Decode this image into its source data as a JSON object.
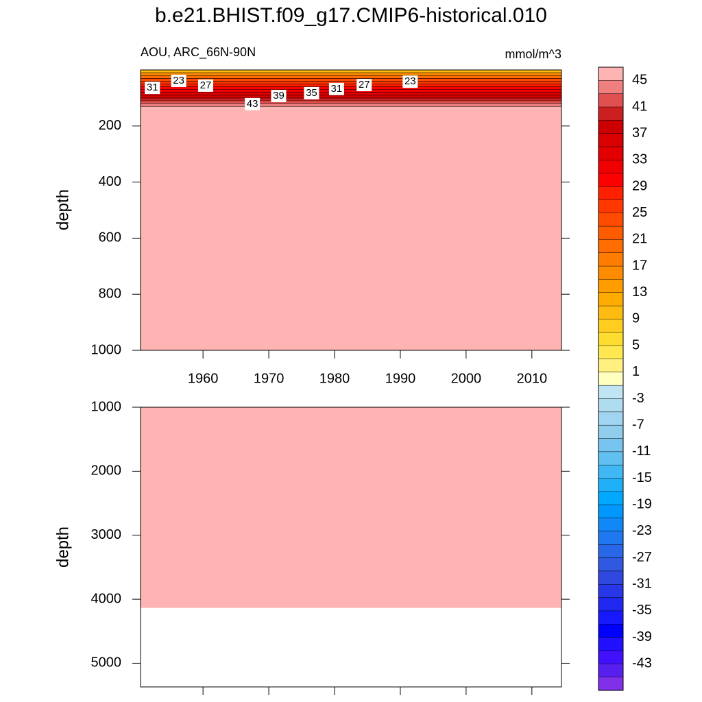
{
  "chart_data": {
    "type": "contour",
    "title": "b.e21.BHIST.f09_g17.CMIP6-historical.010",
    "subtitle_left": "AOU, ARC_66N-90N",
    "subtitle_right": "mmol/m^3",
    "panels": [
      {
        "ylabel": "depth",
        "xlim": [
          1950.5,
          2014.5
        ],
        "ylim": [
          1000,
          0
        ],
        "xticks": [
          1960,
          1970,
          1980,
          1990,
          2000,
          2010
        ],
        "yticks": [
          200,
          400,
          600,
          800,
          1000
        ],
        "show_xtick_labels": true,
        "profile": {
          "depths": [
            0,
            10,
            20,
            30,
            40,
            50,
            60,
            70,
            80,
            90,
            100,
            110,
            120,
            130
          ],
          "values": [
            11,
            17,
            21,
            25,
            27,
            29,
            31,
            33,
            35,
            37,
            41,
            43,
            45,
            47
          ]
        },
        "contour_labels": [
          {
            "text": "31",
            "x": 1952.3,
            "y": 64
          },
          {
            "text": "23",
            "x": 1956.3,
            "y": 39
          },
          {
            "text": "27",
            "x": 1960.4,
            "y": 56
          },
          {
            "text": "43",
            "x": 1967.5,
            "y": 122
          },
          {
            "text": "39",
            "x": 1971.5,
            "y": 93
          },
          {
            "text": "35",
            "x": 1976.5,
            "y": 83
          },
          {
            "text": "31",
            "x": 1980.3,
            "y": 68
          },
          {
            "text": "27",
            "x": 1984.5,
            "y": 54
          },
          {
            "text": "23",
            "x": 1991.5,
            "y": 42
          }
        ]
      },
      {
        "ylabel": "depth",
        "xlim": [
          1950.5,
          2014.5
        ],
        "ylim": [
          5370,
          1000
        ],
        "xticks": [
          1960,
          1970,
          1980,
          1990,
          2000,
          2010
        ],
        "yticks": [
          1000,
          2000,
          3000,
          4000,
          5000
        ],
        "show_xtick_labels": false,
        "profile": {
          "depths": [
            1000
          ],
          "values": [
            47
          ]
        },
        "bottom_depth": 4130
      }
    ],
    "colorbar": {
      "clim": [
        47,
        -47
      ],
      "labels": [
        45,
        41,
        37,
        33,
        29,
        25,
        21,
        17,
        13,
        9,
        5,
        1,
        -3,
        -7,
        -11,
        -15,
        -19,
        -23,
        -27,
        -31,
        -35,
        -39,
        -43
      ],
      "colors": [
        "#ffb4b4",
        "#f08080",
        "#e05050",
        "#cc2020",
        "#cc0000",
        "#d80000",
        "#e40000",
        "#f00000",
        "#ff0000",
        "#ff2000",
        "#ff3800",
        "#ff4c00",
        "#ff5c00",
        "#ff6c00",
        "#ff7c00",
        "#ff8c00",
        "#ff9c00",
        "#ffac00",
        "#ffbc10",
        "#ffcc20",
        "#ffdc30",
        "#ffe850",
        "#fff080",
        "#ffffc0",
        "#c0e4f4",
        "#b0dcf0",
        "#a0d4f0",
        "#90ccec",
        "#78c4f0",
        "#60c0f0",
        "#40b8f4",
        "#20b0f8",
        "#00a8ff",
        "#0098ff",
        "#1088f8",
        "#2078f0",
        "#2868e8",
        "#3058e0",
        "#3048e0",
        "#2838e8",
        "#2028f0",
        "#1818ff",
        "#0000ff",
        "#2010ff",
        "#4010ff",
        "#5820f0",
        "#8030e8"
      ]
    }
  }
}
